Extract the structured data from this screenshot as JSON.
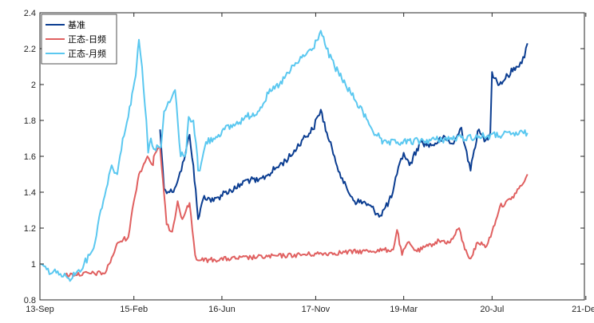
{
  "chart_data": {
    "type": "line",
    "title": "",
    "xlabel": "",
    "ylabel": "",
    "ylim": [
      0.8,
      2.4
    ],
    "yticks": [
      0.8,
      1,
      1.2,
      1.4,
      1.6,
      1.8,
      2,
      2.2,
      2.4
    ],
    "ytick_labels": [
      "0.8",
      "1",
      "1.2",
      "1.4",
      "1.6",
      "1.8",
      "2",
      "2.2",
      "2.4"
    ],
    "xlim": [
      "2013-09-13",
      "2021-12-13"
    ],
    "xticks": [
      "2013-09-13",
      "2015-02-15",
      "2016-06-16",
      "2017-11-17",
      "2019-03-19",
      "2020-07-20",
      "2021-12-21"
    ],
    "xtick_labels": [
      "13-Sep",
      "15-Feb",
      "16-Jun",
      "17-Nov",
      "19-Mar",
      "20-Jul",
      "21-Dec"
    ],
    "grid": false,
    "legend_position": "top-left",
    "series": [
      {
        "name": "基准",
        "color": "#0b3d91",
        "x": [
          "2015-07-10",
          "2015-08-01",
          "2015-09-15",
          "2015-10-20",
          "2015-11-20",
          "2015-12-20",
          "2016-01-10",
          "2016-02-05",
          "2016-03-10",
          "2016-05-01",
          "2016-07-01",
          "2016-09-01",
          "2016-11-01",
          "2017-01-01",
          "2017-03-01",
          "2017-05-01",
          "2017-07-01",
          "2017-09-01",
          "2017-11-01",
          "2017-12-15",
          "2018-01-25",
          "2018-03-01",
          "2018-04-20",
          "2018-06-20",
          "2018-08-20",
          "2018-11-10",
          "2019-01-10",
          "2019-02-10",
          "2019-03-19",
          "2019-04-20",
          "2019-06-20",
          "2019-08-20",
          "2019-10-20",
          "2019-12-20",
          "2020-02-01",
          "2020-03-23",
          "2020-05-01",
          "2020-06-15",
          "2020-07-10",
          "2020-07-20",
          "2020-08-30",
          "2020-10-15",
          "2020-12-01",
          "2021-01-15",
          "2021-02-01"
        ],
        "y": [
          1.75,
          1.42,
          1.4,
          1.48,
          1.58,
          1.72,
          1.55,
          1.25,
          1.38,
          1.35,
          1.4,
          1.42,
          1.47,
          1.46,
          1.5,
          1.55,
          1.6,
          1.69,
          1.75,
          1.86,
          1.7,
          1.6,
          1.45,
          1.35,
          1.34,
          1.27,
          1.37,
          1.5,
          1.62,
          1.55,
          1.68,
          1.66,
          1.7,
          1.67,
          1.76,
          1.52,
          1.74,
          1.69,
          1.73,
          2.07,
          2.0,
          2.05,
          2.1,
          2.15,
          2.23
        ]
      },
      {
        "name": "正态-日频",
        "color": "#e06060",
        "x": [
          "2014-02-01",
          "2014-09-10",
          "2014-10-01",
          "2014-11-20",
          "2015-01-15",
          "2015-02-15",
          "2015-03-15",
          "2015-05-01",
          "2015-06-01",
          "2015-06-05",
          "2015-07-10",
          "2015-08-15",
          "2015-09-15",
          "2015-10-15",
          "2015-11-10",
          "2015-12-01",
          "2015-12-20",
          "2016-01-20",
          "2016-02-05",
          "2016-02-15",
          "2019-01-20",
          "2019-02-10",
          "2019-03-10",
          "2019-04-10",
          "2019-06-01",
          "2019-08-01",
          "2019-10-01",
          "2019-12-01",
          "2020-01-20",
          "2020-02-20",
          "2020-03-23",
          "2020-05-01",
          "2020-06-20",
          "2020-07-20",
          "2020-09-01",
          "2020-11-01",
          "2020-12-15",
          "2021-01-15",
          "2021-02-01"
        ],
        "y": [
          0.94,
          0.95,
          1.0,
          1.12,
          1.15,
          1.35,
          1.5,
          1.6,
          1.55,
          1.6,
          1.65,
          1.22,
          1.18,
          1.35,
          1.25,
          1.3,
          1.34,
          1.05,
          1.02,
          1.02,
          1.08,
          1.19,
          1.05,
          1.12,
          1.07,
          1.1,
          1.13,
          1.12,
          1.2,
          1.08,
          1.03,
          1.12,
          1.1,
          1.18,
          1.32,
          1.36,
          1.42,
          1.46,
          1.5
        ]
      },
      {
        "name": "正态-月频",
        "color": "#5bc8f0",
        "x": [
          "2013-09-20",
          "2013-10-20",
          "2013-11-20",
          "2013-12-20",
          "2014-01-20",
          "2014-02-20",
          "2014-04-01",
          "2014-05-15",
          "2014-06-15",
          "2014-07-15",
          "2014-08-15",
          "2014-09-15",
          "2014-10-15",
          "2014-11-15",
          "2014-12-15",
          "2015-01-15",
          "2015-02-05",
          "2015-02-25",
          "2015-03-15",
          "2015-04-01",
          "2015-04-25",
          "2015-05-05",
          "2015-05-20",
          "2015-06-05",
          "2015-06-10",
          "2015-07-05",
          "2015-07-15",
          "2015-08-01",
          "2015-09-01",
          "2015-10-01",
          "2015-11-01",
          "2015-12-01",
          "2015-12-15",
          "2016-01-10",
          "2016-02-01",
          "2016-02-05",
          "2016-02-15",
          "2016-03-20",
          "2016-05-01",
          "2016-07-01",
          "2016-09-01",
          "2016-11-01",
          "2017-01-01",
          "2017-03-01",
          "2017-05-01",
          "2017-07-01",
          "2017-09-01",
          "2017-11-01",
          "2017-12-15",
          "2018-01-15",
          "2018-03-01",
          "2018-05-01",
          "2018-07-01",
          "2018-09-01",
          "2018-10-15",
          "2018-11-15",
          "2018-11-20",
          "2021-02-01"
        ],
        "y": [
          1.0,
          0.97,
          0.95,
          0.96,
          0.93,
          0.92,
          0.95,
          1.0,
          1.05,
          1.12,
          1.3,
          1.42,
          1.55,
          1.5,
          1.7,
          1.82,
          1.95,
          2.05,
          2.25,
          2.1,
          1.8,
          1.62,
          1.7,
          1.64,
          1.64,
          1.65,
          1.65,
          1.85,
          1.9,
          1.97,
          1.6,
          1.62,
          1.82,
          1.8,
          1.6,
          1.52,
          1.52,
          1.68,
          1.7,
          1.75,
          1.78,
          1.82,
          1.85,
          1.95,
          2.0,
          2.08,
          2.15,
          2.2,
          2.3,
          2.2,
          2.1,
          2.0,
          1.9,
          1.8,
          1.72,
          1.7,
          1.67,
          1.73
        ]
      }
    ]
  }
}
